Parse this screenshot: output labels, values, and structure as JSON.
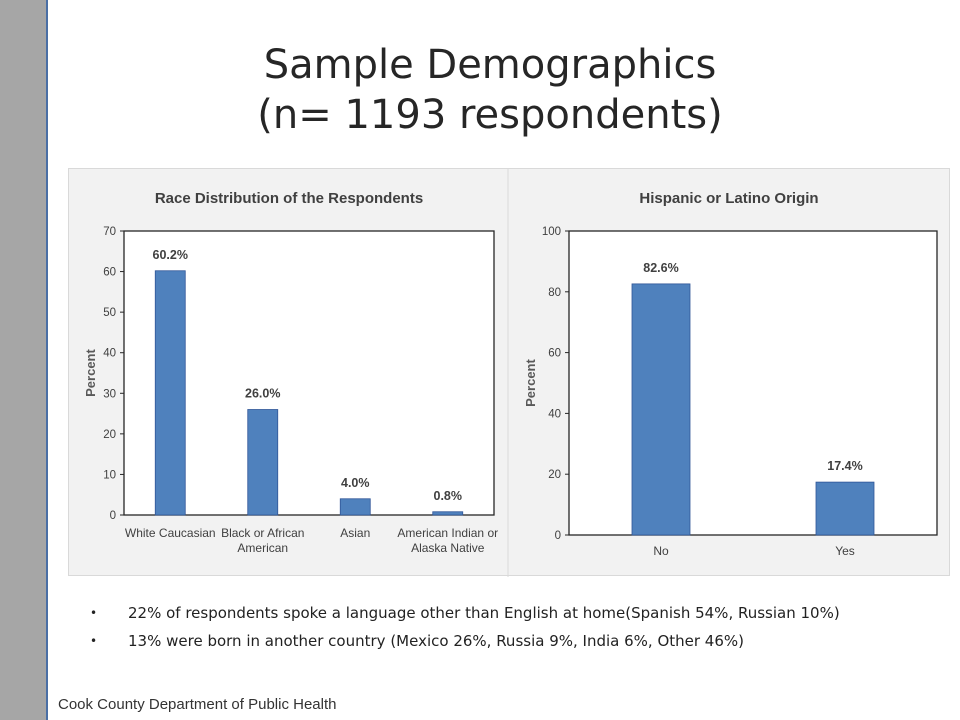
{
  "slide": {
    "title_line1": "Sample Demographics",
    "title_line2": "(n= 1193 respondents)",
    "bullets": [
      "22% of respondents spoke a language other than English at home(Spanish 54%, Russian 10%)",
      "13% were born in another country (Mexico 26%, Russia 9%, India 6%, Other 46%)"
    ],
    "bullet_glyph": "•",
    "footer": "Cook County Department of Public Health"
  },
  "colors": {
    "bar": "#4f81bd",
    "sidebar": "#a6a6a6",
    "sidebar_edge": "#4a6fa5"
  },
  "chart_data": [
    {
      "type": "bar",
      "title": "Race Distribution of the Respondents",
      "ylabel": "Percent",
      "xlabel": "",
      "categories": [
        [
          "White Caucasian"
        ],
        [
          "Black or African",
          "American"
        ],
        [
          "Asian"
        ],
        [
          "American Indian or",
          "Alaska Native"
        ]
      ],
      "values": [
        60.2,
        26.0,
        4.0,
        0.8
      ],
      "data_labels": [
        "60.2%",
        "26.0%",
        "4.0%",
        "0.8%"
      ],
      "ylim": [
        0,
        70
      ],
      "yticks": [
        0,
        10,
        20,
        30,
        40,
        50,
        60,
        70
      ],
      "grid": false,
      "legend": "none"
    },
    {
      "type": "bar",
      "title": "Hispanic  or Latino  Origin",
      "ylabel": "Percent",
      "xlabel": "",
      "categories": [
        [
          "No"
        ],
        [
          "Yes"
        ]
      ],
      "values": [
        82.6,
        17.4
      ],
      "data_labels": [
        "82.6%",
        "17.4%"
      ],
      "ylim": [
        0,
        100
      ],
      "yticks": [
        0,
        20,
        40,
        60,
        80,
        100
      ],
      "grid": false,
      "legend": "none"
    }
  ]
}
